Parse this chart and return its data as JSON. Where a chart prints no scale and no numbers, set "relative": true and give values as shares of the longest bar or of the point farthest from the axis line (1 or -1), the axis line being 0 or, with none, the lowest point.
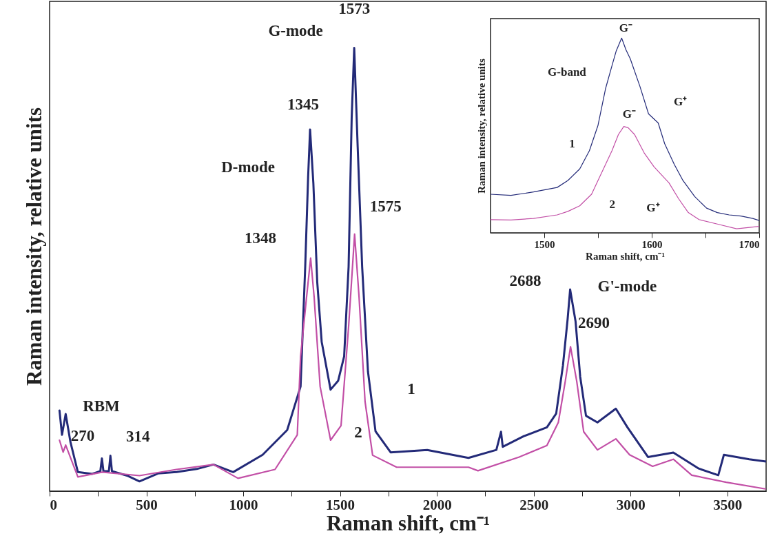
{
  "chart_data": [
    {
      "type": "line",
      "xlabel": "Raman shift, cm⁻¹",
      "ylabel": "Raman intensity, relative units",
      "relative": true,
      "xlim": [
        0,
        3700
      ],
      "xticks": [
        0,
        {
          "value": 250,
          "label": null
        },
        500,
        {
          "value": 750,
          "label": null
        },
        1000,
        {
          "value": 1250,
          "label": null
        },
        1500,
        {
          "value": 1750,
          "label": null
        },
        2000,
        {
          "value": 2250,
          "label": null
        },
        2500,
        {
          "value": 2750,
          "label": null
        },
        3000,
        {
          "value": 3250,
          "label": null
        },
        3500
      ],
      "tick_labels": "x",
      "annotations": [
        {
          "text": "1573",
          "x": 1573,
          "y": 1.0
        },
        "G-mode",
        {
          "text": "1345",
          "x": 1345,
          "y": 0.816
        },
        {
          "text": "D-mode",
          "x": 1331,
          "y": 0.657
        },
        {
          "text": "1575",
          "x": 1575,
          "y": 0.58
        },
        {
          "text": "1348",
          "x": 1348,
          "y": 0.526
        },
        {
          "text": "2688",
          "x": 2688,
          "y": 0.455
        },
        {
          "text": "G'-mode",
          "x": 2705,
          "y": 0.412
        },
        {
          "text": "2690",
          "x": 2690,
          "y": 0.326
        },
        "RBM",
        {
          "text": "270",
          "x": 270,
          "y": 0.074
        },
        {
          "text": "314",
          "x": 314,
          "y": 0.08
        }
      ],
      "series": [
        {
          "name": "1",
          "color": "#232a78",
          "x": [
            51,
            64,
            83,
            108,
            146,
            220,
            262,
            270,
            278,
            306,
            314,
            322,
            400,
            464,
            560,
            656,
            760,
            846,
            948,
            1100,
            1227,
            1296,
            1320,
            1335,
            1345,
            1362,
            1382,
            1405,
            1451,
            1490,
            1521,
            1544,
            1560,
            1573,
            1591,
            1614,
            1644,
            1683,
            1761,
            1950,
            2163,
            2307,
            2331,
            2340,
            2449,
            2568,
            2616,
            2651,
            2675,
            2688,
            2716,
            2740,
            2770,
            2829,
            2924,
            2984,
            3090,
            3221,
            3352,
            3453,
            3482,
            3613,
            3700
          ],
          "values": [
            0.182,
            0.127,
            0.174,
            0.11,
            0.043,
            0.039,
            0.045,
            0.074,
            0.045,
            0.045,
            0.08,
            0.045,
            0.035,
            0.022,
            0.04,
            0.043,
            0.05,
            0.06,
            0.043,
            0.082,
            0.138,
            0.236,
            0.507,
            0.709,
            0.816,
            0.695,
            0.472,
            0.337,
            0.229,
            0.249,
            0.304,
            0.506,
            0.844,
            1.0,
            0.776,
            0.506,
            0.27,
            0.135,
            0.0875,
            0.093,
            0.075,
            0.093,
            0.134,
            0.1,
            0.124,
            0.144,
            0.175,
            0.284,
            0.388,
            0.455,
            0.383,
            0.258,
            0.17,
            0.155,
            0.186,
            0.144,
            0.077,
            0.087,
            0.051,
            0.036,
            0.082,
            0.072,
            0.067
          ]
        },
        {
          "name": "2",
          "color": "#c24fa6",
          "x": [
            51,
            70,
            83,
            146,
            272,
            464,
            655,
            846,
            973,
            1164,
            1279,
            1296,
            1327,
            1348,
            1366,
            1397,
            1451,
            1505,
            1544,
            1575,
            1598,
            1629,
            1668,
            1792,
            2163,
            2212,
            2425,
            2568,
            2627,
            2663,
            2690,
            2722,
            2758,
            2829,
            2924,
            2995,
            3114,
            3221,
            3316,
            3494,
            3696
          ],
          "values": [
            0.115,
            0.088,
            0.104,
            0.032,
            0.043,
            0.035,
            0.049,
            0.06,
            0.029,
            0.049,
            0.127,
            0.304,
            0.438,
            0.526,
            0.438,
            0.236,
            0.115,
            0.148,
            0.371,
            0.58,
            0.438,
            0.202,
            0.081,
            0.054,
            0.054,
            0.046,
            0.077,
            0.103,
            0.155,
            0.248,
            0.326,
            0.248,
            0.134,
            0.093,
            0.118,
            0.082,
            0.056,
            0.072,
            0.036,
            0.02,
            0.005
          ]
        }
      ]
    },
    {
      "type": "line",
      "xlabel": "Raman shift, cm⁻¹",
      "ylabel": "Raman intensity, relative units",
      "relative": true,
      "xlim": [
        1450,
        1700
      ],
      "xticks": [
        1500,
        {
          "value": 1550,
          "label": null
        },
        1600,
        {
          "value": 1650,
          "label": null
        },
        1700
      ],
      "tick_labels": "x",
      "annotations": [
        {
          "text": "G⁻",
          "x": 1572,
          "y": 1.0
        },
        {
          "text": "G-band",
          "x": 1557,
          "y": 0.74
        },
        {
          "text": "G⁻",
          "x": 1574,
          "y": 0.546
        },
        {
          "text": "G⁺",
          "x": 1601,
          "y": 0.593
        },
        {
          "text": "G⁺",
          "x": 1616,
          "y": 0.257
        }
      ],
      "series": [
        {
          "name": "1",
          "color": "#232a78",
          "x": [
            1450,
            1469,
            1490,
            1512,
            1522,
            1533,
            1542,
            1550,
            1557,
            1563,
            1567,
            1572,
            1576,
            1580,
            1589,
            1597,
            1606,
            1612,
            1621,
            1629,
            1640,
            1651,
            1661,
            1672,
            1683,
            1694,
            1700
          ],
          "values": [
            0.198,
            0.192,
            0.21,
            0.233,
            0.269,
            0.328,
            0.422,
            0.552,
            0.74,
            0.858,
            0.935,
            1.0,
            0.94,
            0.894,
            0.752,
            0.611,
            0.564,
            0.458,
            0.351,
            0.269,
            0.186,
            0.127,
            0.104,
            0.092,
            0.086,
            0.074,
            0.063
          ]
        },
        {
          "name": "2",
          "color": "#c24fa6",
          "x": [
            1450,
            1469,
            1490,
            1512,
            1522,
            1533,
            1544,
            1554,
            1563,
            1569,
            1574,
            1578,
            1584,
            1593,
            1602,
            1610,
            1616,
            1625,
            1634,
            1644,
            1661,
            1679,
            1700
          ],
          "values": [
            0.068,
            0.066,
            0.074,
            0.092,
            0.11,
            0.139,
            0.198,
            0.316,
            0.422,
            0.505,
            0.546,
            0.54,
            0.505,
            0.41,
            0.34,
            0.292,
            0.257,
            0.175,
            0.104,
            0.068,
            0.045,
            0.021,
            0.033
          ]
        }
      ]
    }
  ]
}
